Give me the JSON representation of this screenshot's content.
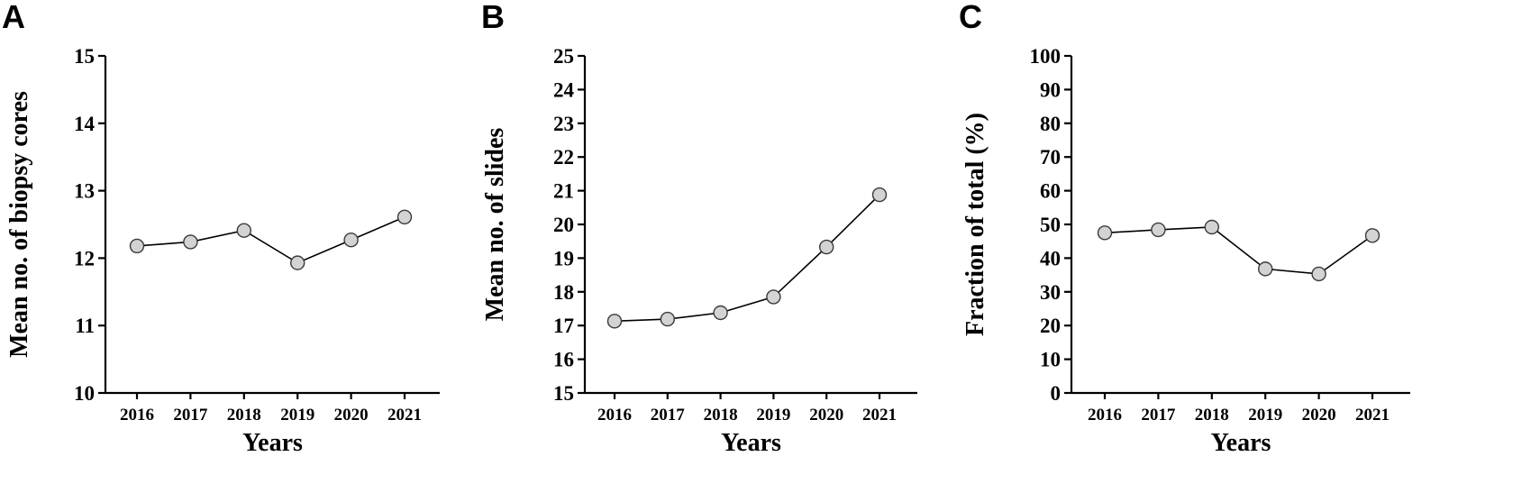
{
  "chart_data": [
    {
      "panel": "A",
      "type": "line",
      "xlabel": "Years",
      "ylabel": "Mean no. of biopsy cores",
      "categories": [
        "2016",
        "2017",
        "2018",
        "2019",
        "2020",
        "2021"
      ],
      "values": [
        12.18,
        12.24,
        12.41,
        11.93,
        12.27,
        12.61
      ],
      "ylim": [
        10,
        15
      ],
      "yticks": [
        "10",
        "11",
        "12",
        "13",
        "14",
        "15"
      ],
      "grid": false,
      "marker_color": "#d3d3d3"
    },
    {
      "panel": "B",
      "type": "line",
      "xlabel": "Years",
      "ylabel": "Mean no. of slides",
      "categories": [
        "2016",
        "2017",
        "2018",
        "2019",
        "2020",
        "2021"
      ],
      "values": [
        17.13,
        17.19,
        17.38,
        17.85,
        19.33,
        20.88
      ],
      "ylim": [
        15,
        25
      ],
      "yticks": [
        "15",
        "16",
        "17",
        "18",
        "19",
        "20",
        "21",
        "22",
        "23",
        "24",
        "25"
      ],
      "grid": false,
      "marker_color": "#d3d3d3"
    },
    {
      "panel": "C",
      "type": "line",
      "xlabel": "Years",
      "ylabel": "Fraction of total (%)",
      "categories": [
        "2016",
        "2017",
        "2018",
        "2019",
        "2020",
        "2021"
      ],
      "values": [
        47.5,
        48.4,
        49.2,
        36.8,
        35.3,
        46.7
      ],
      "ylim": [
        0,
        100
      ],
      "yticks": [
        "0",
        "10",
        "20",
        "30",
        "40",
        "50",
        "60",
        "70",
        "80",
        "90",
        "100"
      ],
      "grid": false,
      "marker_color": "#d3d3d3"
    }
  ]
}
